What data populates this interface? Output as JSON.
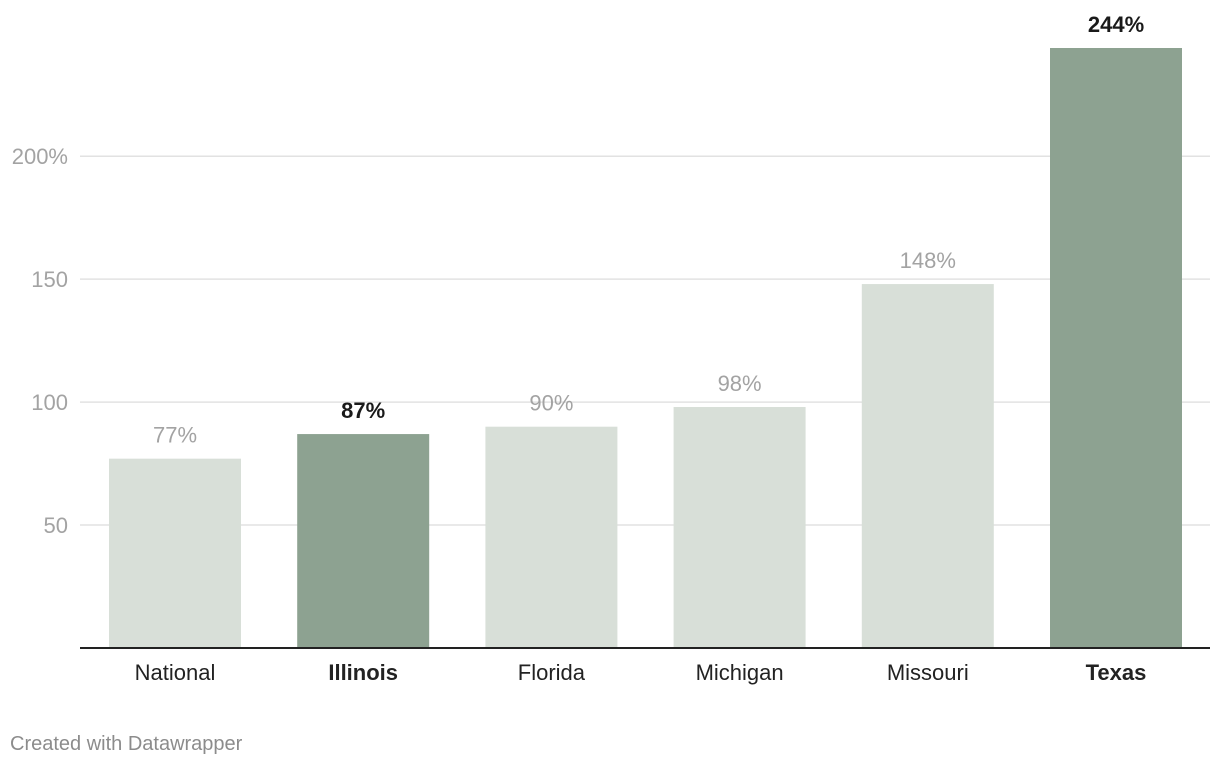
{
  "chart_data": {
    "type": "bar",
    "categories": [
      "National",
      "Illinois",
      "Florida",
      "Michigan",
      "Missouri",
      "Texas"
    ],
    "values": [
      77,
      87,
      90,
      98,
      148,
      244
    ],
    "value_labels": [
      "77%",
      "87%",
      "90%",
      "98%",
      "148%",
      "244%"
    ],
    "highlighted": [
      false,
      true,
      false,
      false,
      false,
      true
    ],
    "yticks": [
      50,
      100,
      150,
      200
    ],
    "ytick_labels": [
      "50",
      "100",
      "150",
      "200%"
    ],
    "ylim": [
      0,
      244
    ],
    "title": "",
    "xlabel": "",
    "ylabel": "",
    "grid": true,
    "colors": {
      "normal": "#d8dfd8",
      "highlight": "#8da291",
      "grid": "#e2e2e2",
      "axis": "#222222"
    }
  },
  "footer": {
    "credit": "Created with Datawrapper"
  }
}
